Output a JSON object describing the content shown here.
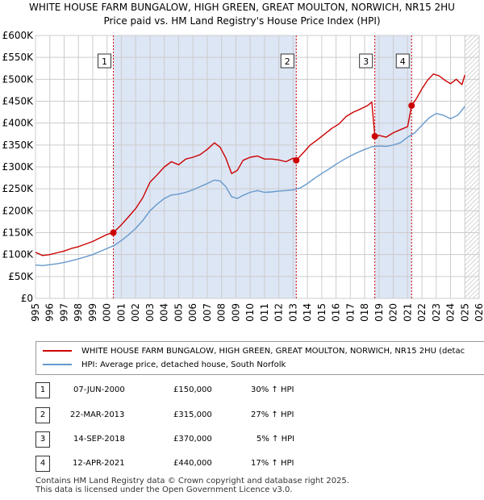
{
  "header": {
    "title": "WHITE HOUSE FARM BUNGALOW, HIGH GREEN, GREAT MOULTON, NORWICH, NR15 2HU",
    "subtitle": "Price paid vs. HM Land Registry's House Price Index (HPI)"
  },
  "colors": {
    "property": "#cc0000",
    "hpi": "#6699cc",
    "band": "#dde6f5",
    "grid": "#cccccc"
  },
  "chart_data": {
    "type": "line",
    "title": "WHITE HOUSE FARM BUNGALOW, HIGH GREEN, GREAT MOULTON, NORWICH, NR15 2HU",
    "subtitle": "Price paid vs. HM Land Registry's House Price Index (HPI)",
    "xlabel": "",
    "ylabel": "",
    "xlim": [
      1995,
      2026
    ],
    "ylim": [
      0,
      600000
    ],
    "grid": true,
    "x_ticks": [
      "1995",
      "1996",
      "1997",
      "1998",
      "1999",
      "2000",
      "2001",
      "2002",
      "2003",
      "2004",
      "2005",
      "2006",
      "2007",
      "2008",
      "2009",
      "2010",
      "2011",
      "2012",
      "2013",
      "2014",
      "2015",
      "2016",
      "2017",
      "2018",
      "2019",
      "2020",
      "2021",
      "2022",
      "2023",
      "2024",
      "2025",
      "2026"
    ],
    "y_ticks": [
      {
        "value": 0,
        "label": "£0"
      },
      {
        "value": 50000,
        "label": "£50K"
      },
      {
        "value": 100000,
        "label": "£100K"
      },
      {
        "value": 150000,
        "label": "£150K"
      },
      {
        "value": 200000,
        "label": "£200K"
      },
      {
        "value": 250000,
        "label": "£250K"
      },
      {
        "value": 300000,
        "label": "£300K"
      },
      {
        "value": 350000,
        "label": "£350K"
      },
      {
        "value": 400000,
        "label": "£400K"
      },
      {
        "value": 450000,
        "label": "£450K"
      },
      {
        "value": 500000,
        "label": "£500K"
      },
      {
        "value": 550000,
        "label": "£550K"
      },
      {
        "value": 600000,
        "label": "£600K"
      }
    ],
    "shaded_ranges": [
      {
        "from": 2000.44,
        "to": 2013.22
      },
      {
        "from": 2018.71,
        "to": 2021.28
      }
    ],
    "hatched_range": {
      "from": 2025.0,
      "to": 2026.0
    },
    "series": [
      {
        "name": "WHITE HOUSE FARM BUNGALOW, HIGH GREEN, GREAT MOULTON, NORWICH, NR15 2HU (detac",
        "color": "#cc0000",
        "x": [
          1995.0,
          1995.5,
          1996.0,
          1996.5,
          1997.0,
          1997.5,
          1998.0,
          1998.5,
          1999.0,
          1999.5,
          2000.0,
          2000.44,
          2001.0,
          2001.5,
          2002.0,
          2002.5,
          2003.0,
          2003.5,
          2004.0,
          2004.5,
          2005.0,
          2005.5,
          2006.0,
          2006.5,
          2007.0,
          2007.5,
          2007.9,
          2008.3,
          2008.7,
          2009.1,
          2009.5,
          2010.0,
          2010.5,
          2011.0,
          2011.5,
          2012.0,
          2012.5,
          2013.0,
          2013.22,
          2013.7,
          2014.2,
          2014.7,
          2015.2,
          2015.7,
          2016.2,
          2016.7,
          2017.2,
          2017.7,
          2018.2,
          2018.5,
          2018.71,
          2019.0,
          2019.5,
          2020.0,
          2020.5,
          2021.0,
          2021.28,
          2021.6,
          2022.0,
          2022.4,
          2022.8,
          2023.2,
          2023.6,
          2024.0,
          2024.4,
          2024.8,
          2025.0
        ],
        "values": [
          105000,
          98000,
          100000,
          104000,
          108000,
          114000,
          118000,
          124000,
          130000,
          138000,
          146000,
          150000,
          168000,
          186000,
          205000,
          230000,
          265000,
          282000,
          300000,
          312000,
          305000,
          318000,
          322000,
          328000,
          340000,
          355000,
          345000,
          320000,
          285000,
          292000,
          315000,
          322000,
          325000,
          318000,
          318000,
          316000,
          312000,
          320000,
          315000,
          332000,
          350000,
          362000,
          375000,
          388000,
          398000,
          415000,
          425000,
          432000,
          440000,
          448000,
          370000,
          372000,
          368000,
          378000,
          385000,
          392000,
          440000,
          455000,
          478000,
          498000,
          512000,
          508000,
          498000,
          490000,
          500000,
          488000,
          510000
        ]
      },
      {
        "name": "HPI: Average price, detached house, South Norfolk",
        "color": "#6699cc",
        "x": [
          1995.0,
          1995.5,
          1996.0,
          1996.5,
          1997.0,
          1997.5,
          1998.0,
          1998.5,
          1999.0,
          1999.5,
          2000.0,
          2000.5,
          2001.0,
          2001.5,
          2002.0,
          2002.5,
          2003.0,
          2003.5,
          2004.0,
          2004.5,
          2005.0,
          2005.5,
          2006.0,
          2006.5,
          2007.0,
          2007.5,
          2007.9,
          2008.3,
          2008.7,
          2009.1,
          2009.5,
          2010.0,
          2010.5,
          2011.0,
          2011.5,
          2012.0,
          2012.5,
          2013.0,
          2013.5,
          2014.0,
          2014.5,
          2015.0,
          2015.5,
          2016.0,
          2016.5,
          2017.0,
          2017.5,
          2018.0,
          2018.5,
          2019.0,
          2019.5,
          2020.0,
          2020.5,
          2021.0,
          2021.5,
          2022.0,
          2022.5,
          2023.0,
          2023.5,
          2024.0,
          2024.5,
          2025.0
        ],
        "values": [
          76000,
          75000,
          77000,
          79000,
          82000,
          86000,
          90000,
          95000,
          100000,
          107000,
          114000,
          121000,
          132000,
          145000,
          160000,
          178000,
          200000,
          215000,
          228000,
          236000,
          238000,
          242000,
          248000,
          255000,
          262000,
          270000,
          268000,
          255000,
          232000,
          228000,
          235000,
          242000,
          246000,
          242000,
          243000,
          245000,
          246000,
          248000,
          252000,
          262000,
          274000,
          285000,
          295000,
          306000,
          316000,
          325000,
          333000,
          340000,
          346000,
          348000,
          347000,
          350000,
          355000,
          368000,
          378000,
          395000,
          412000,
          422000,
          418000,
          410000,
          418000,
          438000
        ]
      }
    ],
    "sales": [
      {
        "label": "1",
        "x": 2000.44,
        "value": 150000
      },
      {
        "label": "2",
        "x": 2013.22,
        "value": 315000
      },
      {
        "label": "3",
        "x": 2018.71,
        "value": 370000
      },
      {
        "label": "4",
        "x": 2021.28,
        "value": 440000
      }
    ]
  },
  "legend": {
    "items": [
      {
        "label": "WHITE HOUSE FARM BUNGALOW, HIGH GREEN, GREAT MOULTON, NORWICH, NR15 2HU (detac"
      },
      {
        "label": "HPI: Average price, detached house, South Norfolk"
      }
    ]
  },
  "table": {
    "rows": [
      {
        "num": "1",
        "date": "07-JUN-2000",
        "price": "£150,000",
        "hpi": "30% ↑ HPI"
      },
      {
        "num": "2",
        "date": "22-MAR-2013",
        "price": "£315,000",
        "hpi": "27% ↑ HPI"
      },
      {
        "num": "3",
        "date": "14-SEP-2018",
        "price": "£370,000",
        "hpi": "5% ↑ HPI"
      },
      {
        "num": "4",
        "date": "12-APR-2021",
        "price": "£440,000",
        "hpi": "17% ↑ HPI"
      }
    ]
  },
  "footer": {
    "line1": "Contains HM Land Registry data © Crown copyright and database right 2025.",
    "line2": "This data is licensed under the Open Government Licence v3.0."
  }
}
